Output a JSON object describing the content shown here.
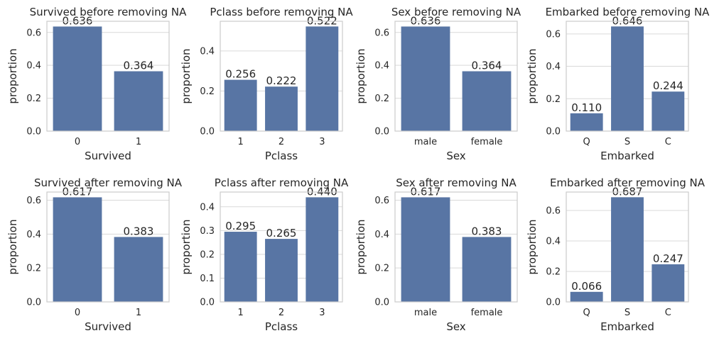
{
  "chart_data": [
    {
      "type": "bar",
      "title": "Survived before removing NA",
      "xlabel": "Survived",
      "ylabel": "proportion",
      "categories": [
        "0",
        "1"
      ],
      "values": [
        0.636,
        0.364
      ],
      "value_labels": [
        "0.636",
        "0.364"
      ],
      "ylim": [
        0,
        0.668
      ],
      "yticks": [
        "0.0",
        "0.2",
        "0.4",
        "0.6"
      ],
      "grid": "horizontal"
    },
    {
      "type": "bar",
      "title": "Pclass before removing NA",
      "xlabel": "Pclass",
      "ylabel": "proportion",
      "categories": [
        "1",
        "2",
        "3"
      ],
      "values": [
        0.256,
        0.222,
        0.522
      ],
      "value_labels": [
        "0.256",
        "0.222",
        "0.522"
      ],
      "ylim": [
        0,
        0.548
      ],
      "yticks": [
        "0.0",
        "0.2",
        "0.4"
      ],
      "grid": "horizontal"
    },
    {
      "type": "bar",
      "title": "Sex before removing NA",
      "xlabel": "Sex",
      "ylabel": "proportion",
      "categories": [
        "male",
        "female"
      ],
      "values": [
        0.636,
        0.364
      ],
      "value_labels": [
        "0.636",
        "0.364"
      ],
      "ylim": [
        0,
        0.668
      ],
      "yticks": [
        "0.0",
        "0.2",
        "0.4",
        "0.6"
      ],
      "grid": "horizontal"
    },
    {
      "type": "bar",
      "title": "Embarked before removing NA",
      "xlabel": "Embarked",
      "ylabel": "proportion",
      "categories": [
        "Q",
        "S",
        "C"
      ],
      "values": [
        0.11,
        0.646,
        0.244
      ],
      "value_labels": [
        "0.110",
        "0.646",
        "0.244"
      ],
      "ylim": [
        0,
        0.678
      ],
      "yticks": [
        "0.0",
        "0.2",
        "0.4",
        "0.6"
      ],
      "grid": "horizontal"
    },
    {
      "type": "bar",
      "title": "Survived after removing NA",
      "xlabel": "Survived",
      "ylabel": "proportion",
      "categories": [
        "0",
        "1"
      ],
      "values": [
        0.617,
        0.383
      ],
      "value_labels": [
        "0.617",
        "0.383"
      ],
      "ylim": [
        0,
        0.648
      ],
      "yticks": [
        "0.0",
        "0.2",
        "0.4",
        "0.6"
      ],
      "grid": "horizontal"
    },
    {
      "type": "bar",
      "title": "Pclass after removing NA",
      "xlabel": "Pclass",
      "ylabel": "proportion",
      "categories": [
        "1",
        "2",
        "3"
      ],
      "values": [
        0.295,
        0.265,
        0.44
      ],
      "value_labels": [
        "0.295",
        "0.265",
        "0.440"
      ],
      "ylim": [
        0,
        0.462
      ],
      "yticks": [
        "0.0",
        "0.1",
        "0.2",
        "0.3",
        "0.4"
      ],
      "grid": "horizontal"
    },
    {
      "type": "bar",
      "title": "Sex after removing NA",
      "xlabel": "Sex",
      "ylabel": "proportion",
      "categories": [
        "male",
        "female"
      ],
      "values": [
        0.617,
        0.383
      ],
      "value_labels": [
        "0.617",
        "0.383"
      ],
      "ylim": [
        0,
        0.648
      ],
      "yticks": [
        "0.0",
        "0.2",
        "0.4",
        "0.6"
      ],
      "grid": "horizontal"
    },
    {
      "type": "bar",
      "title": "Embarked after removing NA",
      "xlabel": "Embarked",
      "ylabel": "proportion",
      "categories": [
        "Q",
        "S",
        "C"
      ],
      "values": [
        0.066,
        0.687,
        0.247
      ],
      "value_labels": [
        "0.066",
        "0.687",
        "0.247"
      ],
      "ylim": [
        0,
        0.721
      ],
      "yticks": [
        "0.0",
        "0.2",
        "0.4",
        "0.6"
      ],
      "grid": "horizontal"
    }
  ],
  "colors": {
    "bar": "#5875a4",
    "grid": "#d9d9d9",
    "spine": "#cccccc",
    "text": "#262626"
  }
}
